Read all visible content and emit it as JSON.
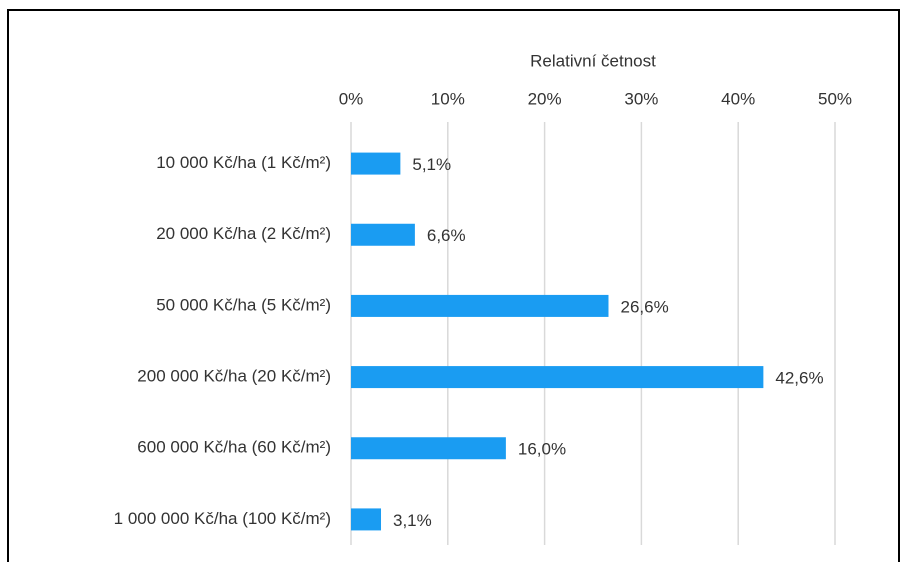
{
  "chart_data": {
    "type": "bar",
    "orientation": "horizontal",
    "x_axis_label": "Relativní četnost",
    "categories": [
      "10 000 Kč/ha (1 Kč/m²)",
      "20 000 Kč/ha (2 Kč/m²)",
      "50 000 Kč/ha (5 Kč/m²)",
      "200 000 Kč/ha (20 Kč/m²)",
      "600 000 Kč/ha (60 Kč/m²)",
      "1 000 000 Kč/ha (100 Kč/m²)"
    ],
    "values": [
      5.1,
      6.6,
      26.6,
      42.6,
      16.0,
      3.1
    ],
    "value_labels": [
      "5,1%",
      "6,6%",
      "26,6%",
      "42,6%",
      "16,0%",
      "3,1%"
    ],
    "color": "#1a9cf2",
    "xlim": [
      0,
      50
    ],
    "xticks": [
      {
        "value": 0,
        "label": "0%"
      },
      {
        "value": 10,
        "label": "10%"
      },
      {
        "value": 20,
        "label": "20%"
      },
      {
        "value": 30,
        "label": "30%"
      },
      {
        "value": 40,
        "label": "40%"
      },
      {
        "value": 50,
        "label": "50%"
      }
    ],
    "grid": true
  }
}
